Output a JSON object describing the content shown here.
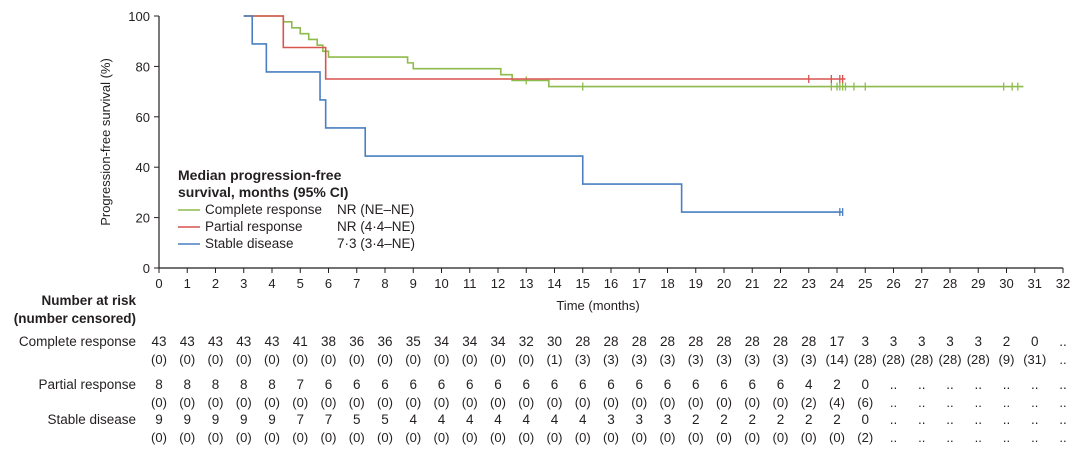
{
  "chart_data": {
    "type": "line",
    "subtype": "kaplan-meier",
    "xlabel": "Time (months)",
    "ylabel": "Progression-free survival (%)",
    "xlim": [
      0,
      32
    ],
    "ylim": [
      0,
      100
    ],
    "xticks": [
      0,
      1,
      2,
      3,
      4,
      5,
      6,
      7,
      8,
      9,
      10,
      11,
      12,
      13,
      14,
      15,
      16,
      17,
      18,
      19,
      20,
      21,
      22,
      23,
      24,
      25,
      26,
      27,
      28,
      29,
      30,
      31,
      32
    ],
    "yticks": [
      0,
      20,
      40,
      60,
      80,
      100
    ],
    "legend": {
      "title_line1": "Median progression-free",
      "title_line2": "survival, months (95% CI)",
      "placement": "lower-left"
    },
    "series": [
      {
        "name": "Complete response",
        "median": "NR (NE–NE)",
        "color": "#8dbb4c",
        "steps": [
          [
            3,
            100
          ],
          [
            4.4,
            97.7
          ],
          [
            4.7,
            95.3
          ],
          [
            5.0,
            93.0
          ],
          [
            5.3,
            90.7
          ],
          [
            5.6,
            88.4
          ],
          [
            5.8,
            86.0
          ],
          [
            6.0,
            83.7
          ],
          [
            8.8,
            81.4
          ],
          [
            9.0,
            79.1
          ],
          [
            12.1,
            76.7
          ],
          [
            12.5,
            74.4
          ],
          [
            13.8,
            72.0
          ],
          [
            30.6,
            72.0
          ]
        ],
        "censored": [
          13.0,
          15.0,
          23.8,
          24.0,
          24.1,
          24.2,
          24.3,
          24.6,
          25.0,
          29.9,
          30.2,
          30.4
        ]
      },
      {
        "name": "Partial response",
        "median": "NR (4·4–NE)",
        "color": "#d9534f",
        "steps": [
          [
            3,
            100
          ],
          [
            4.4,
            87.5
          ],
          [
            5.9,
            75.0
          ],
          [
            24.3,
            75.0
          ]
        ],
        "censored": [
          23.0,
          23.8,
          24.1,
          24.2
        ]
      },
      {
        "name": "Stable disease",
        "median": "7·3 (3·4–NE)",
        "color": "#4a7fc1",
        "steps": [
          [
            3,
            100
          ],
          [
            3.3,
            88.9
          ],
          [
            3.8,
            77.8
          ],
          [
            5.7,
            66.7
          ],
          [
            5.9,
            55.6
          ],
          [
            7.3,
            44.4
          ],
          [
            15.0,
            33.3
          ],
          [
            18.5,
            22.2
          ],
          [
            24.2,
            22.2
          ]
        ],
        "censored": [
          24.1,
          24.2
        ]
      }
    ],
    "risk_table": {
      "header_line1": "Number at risk",
      "header_line2": "(number censored)",
      "rows": [
        {
          "name": "Complete response",
          "at_risk": [
            "43",
            "43",
            "43",
            "43",
            "43",
            "41",
            "38",
            "36",
            "36",
            "35",
            "34",
            "34",
            "34",
            "32",
            "30",
            "28",
            "28",
            "28",
            "28",
            "28",
            "28",
            "28",
            "28",
            "28",
            "17",
            "3",
            "3",
            "3",
            "3",
            "3",
            "2",
            "0",
            ".."
          ],
          "censored": [
            "(0)",
            "(0)",
            "(0)",
            "(0)",
            "(0)",
            "(0)",
            "(0)",
            "(0)",
            "(0)",
            "(0)",
            "(0)",
            "(0)",
            "(0)",
            "(0)",
            "(1)",
            "(3)",
            "(3)",
            "(3)",
            "(3)",
            "(3)",
            "(3)",
            "(3)",
            "(3)",
            "(3)",
            "(14)",
            "(28)",
            "(28)",
            "(28)",
            "(28)",
            "(28)",
            "(9)",
            "(31)",
            ".."
          ]
        },
        {
          "name": "Partial response",
          "at_risk": [
            "8",
            "8",
            "8",
            "8",
            "8",
            "7",
            "6",
            "6",
            "6",
            "6",
            "6",
            "6",
            "6",
            "6",
            "6",
            "6",
            "6",
            "6",
            "6",
            "6",
            "6",
            "6",
            "6",
            "4",
            "2",
            "0",
            "..",
            "..",
            "..",
            "..",
            "..",
            "..",
            ".."
          ],
          "censored": [
            "(0)",
            "(0)",
            "(0)",
            "(0)",
            "(0)",
            "(0)",
            "(0)",
            "(0)",
            "(0)",
            "(0)",
            "(0)",
            "(0)",
            "(0)",
            "(0)",
            "(0)",
            "(0)",
            "(0)",
            "(0)",
            "(0)",
            "(0)",
            "(0)",
            "(0)",
            "(0)",
            "(2)",
            "(4)",
            "(6)",
            "..",
            "..",
            "..",
            "..",
            "..",
            "..",
            ".."
          ]
        },
        {
          "name": "Stable disease",
          "at_risk": [
            "9",
            "9",
            "9",
            "9",
            "9",
            "7",
            "7",
            "5",
            "5",
            "4",
            "4",
            "4",
            "4",
            "4",
            "4",
            "4",
            "3",
            "3",
            "3",
            "2",
            "2",
            "2",
            "2",
            "2",
            "2",
            "0",
            "..",
            "..",
            "..",
            "..",
            "..",
            "..",
            ".."
          ],
          "censored": [
            "(0)",
            "(0)",
            "(0)",
            "(0)",
            "(0)",
            "(0)",
            "(0)",
            "(0)",
            "(0)",
            "(0)",
            "(0)",
            "(0)",
            "(0)",
            "(0)",
            "(0)",
            "(0)",
            "(0)",
            "(0)",
            "(0)",
            "(0)",
            "(0)",
            "(0)",
            "(0)",
            "(0)",
            "(0)",
            "(2)",
            "..",
            "..",
            "..",
            "..",
            "..",
            "..",
            ".."
          ]
        }
      ]
    }
  }
}
